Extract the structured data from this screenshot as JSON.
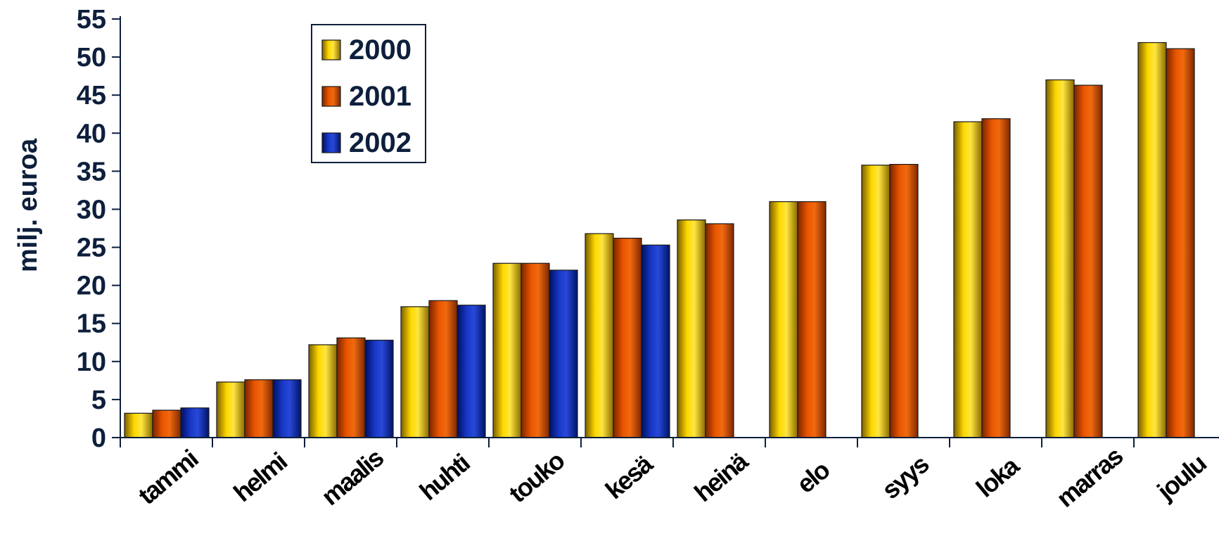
{
  "chart_data": {
    "type": "bar",
    "categories": [
      "tammi",
      "helmi",
      "maalis",
      "huhti",
      "touko",
      "kesä",
      "heinä",
      "elo",
      "syys",
      "loka",
      "marras",
      "joulu"
    ],
    "series": [
      {
        "name": "2000",
        "color": "#f2c200",
        "values": [
          3.2,
          7.3,
          12.2,
          17.2,
          22.9,
          26.8,
          28.6,
          31.0,
          35.8,
          41.5,
          47.0,
          51.9
        ]
      },
      {
        "name": "2001",
        "color": "#e05000",
        "values": [
          3.6,
          7.6,
          13.1,
          18.0,
          22.9,
          26.2,
          28.1,
          31.0,
          35.9,
          41.9,
          46.3,
          51.1
        ]
      },
      {
        "name": "2002",
        "color": "#1030b0",
        "values": [
          3.9,
          7.6,
          12.8,
          17.4,
          22.0,
          25.3,
          null,
          null,
          null,
          null,
          null,
          null
        ]
      }
    ],
    "ylabel": "milj. euroa",
    "ylim": [
      0,
      55
    ],
    "yticks": [
      0,
      5,
      10,
      15,
      20,
      25,
      30,
      35,
      40,
      45,
      50,
      55
    ],
    "legend_position": "top-left"
  }
}
